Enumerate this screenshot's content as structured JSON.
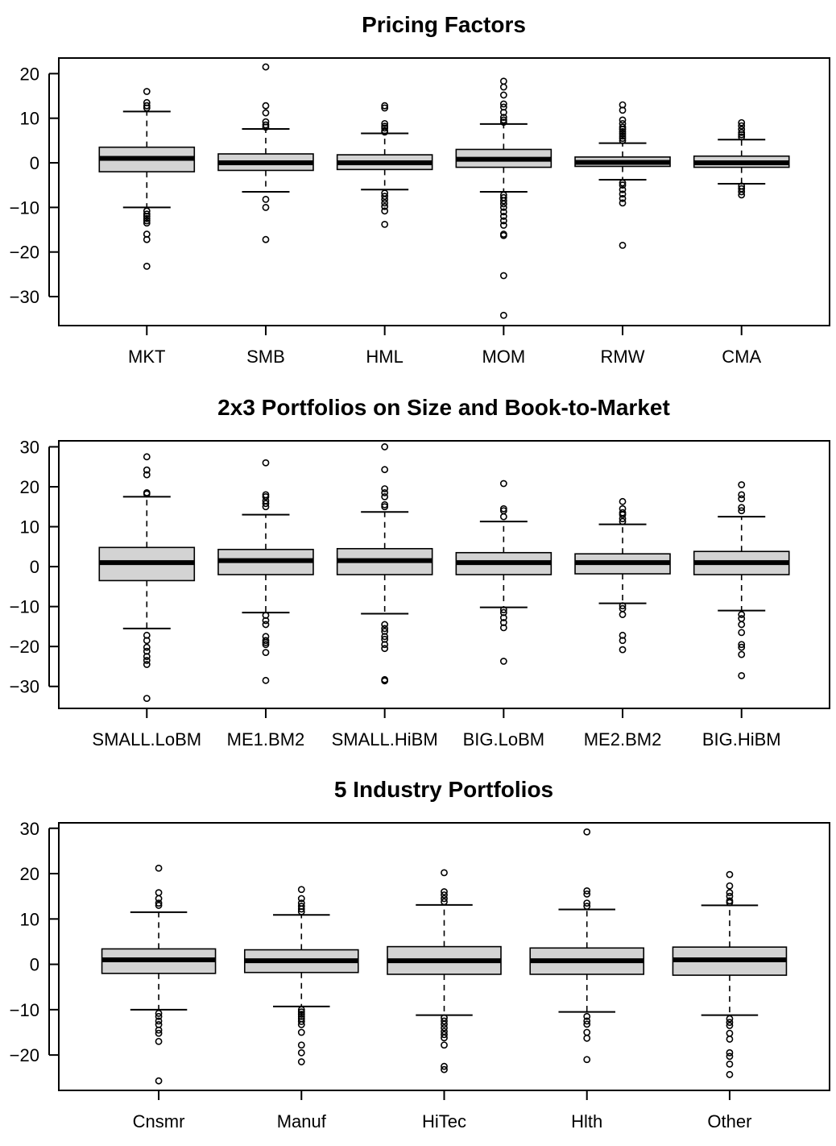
{
  "chart_data": [
    {
      "type": "box",
      "title": "Pricing Factors",
      "xlabel": "",
      "ylabel": "",
      "ylim": [
        -36.5,
        23.5
      ],
      "yticks": [
        -30,
        -20,
        -10,
        0,
        10,
        20
      ],
      "categories": [
        "MKT",
        "SMB",
        "HML",
        "MOM",
        "RMW",
        "CMA"
      ],
      "boxes": [
        {
          "whisker_low": -10,
          "q1": -2,
          "median": 1,
          "q3": 3.5,
          "whisker_high": 11.5,
          "outliers": [
            16,
            13.5,
            12.8,
            12.3,
            -10.8,
            -11.5,
            -12,
            -12.5,
            -13,
            -13.5,
            -16,
            -17.2,
            -23.2
          ]
        },
        {
          "whisker_low": -6.5,
          "q1": -1.7,
          "median": 0,
          "q3": 2,
          "whisker_high": 7.6,
          "outliers": [
            21.5,
            12.8,
            11.2,
            9.2,
            8.5,
            8,
            -8.2,
            -10,
            -17.2
          ]
        },
        {
          "whisker_low": -6,
          "q1": -1.5,
          "median": 0,
          "q3": 1.8,
          "whisker_high": 6.6,
          "outliers": [
            12.8,
            12.3,
            8.8,
            8.2,
            7.8,
            7.2,
            6.9,
            -6.8,
            -7.5,
            -8.2,
            -9,
            -9.8,
            -10.8,
            -13.8
          ]
        },
        {
          "whisker_low": -6.5,
          "q1": -1,
          "median": 0.8,
          "q3": 3,
          "whisker_high": 8.7,
          "outliers": [
            18.3,
            17,
            15.2,
            13.2,
            12.5,
            11.3,
            10.2,
            9.6,
            9.1,
            -7.2,
            -7.8,
            -8.5,
            -9.2,
            -10,
            -11,
            -12,
            -13,
            -14,
            -16,
            -16.3,
            -25.3,
            -34.2
          ]
        },
        {
          "whisker_low": -3.8,
          "q1": -0.8,
          "median": 0.1,
          "q3": 1.3,
          "whisker_high": 4.4,
          "outliers": [
            13,
            11.8,
            9.6,
            8.8,
            8,
            7.5,
            7,
            6.5,
            6,
            5.5,
            5,
            -4.5,
            -5,
            -6,
            -7,
            -8,
            -9,
            -18.5
          ]
        },
        {
          "whisker_low": -4.7,
          "q1": -1,
          "median": 0,
          "q3": 1.5,
          "whisker_high": 5.2,
          "outliers": [
            9,
            8.3,
            7.5,
            6.8,
            6.3,
            5.8,
            -5.2,
            -5.8,
            -6.5,
            -7.2
          ]
        }
      ]
    },
    {
      "type": "box",
      "title": "2x3 Portfolios on Size and Book-to-Market",
      "xlabel": "",
      "ylabel": "",
      "ylim": [
        -35.5,
        31.5
      ],
      "yticks": [
        -30,
        -20,
        -10,
        0,
        10,
        20,
        30
      ],
      "categories": [
        "SMALL.LoBM",
        "ME1.BM2",
        "SMALL.HiBM",
        "BIG.LoBM",
        "ME2.BM2",
        "BIG.HiBM"
      ],
      "boxes": [
        {
          "whisker_low": -15.5,
          "q1": -3.5,
          "median": 1,
          "q3": 4.8,
          "whisker_high": 17.5,
          "outliers": [
            27.5,
            24.2,
            23,
            18.5,
            18.2,
            -17.2,
            -18.5,
            -20.2,
            -21.2,
            -22.5,
            -23.5,
            -24.5,
            -33
          ]
        },
        {
          "whisker_low": -11.5,
          "q1": -2,
          "median": 1.5,
          "q3": 4.3,
          "whisker_high": 13,
          "outliers": [
            26,
            18,
            17.5,
            16.5,
            15.8,
            15,
            -12.2,
            -13.5,
            -14.5,
            -17.5,
            -18.5,
            -19,
            -19.5,
            -21.5,
            -28.5
          ]
        },
        {
          "whisker_low": -11.8,
          "q1": -2,
          "median": 1.5,
          "q3": 4.5,
          "whisker_high": 13.7,
          "outliers": [
            30,
            24.3,
            19.5,
            18.5,
            17.5,
            15.5,
            15,
            -14.5,
            -15.5,
            -16.2,
            -17.5,
            -18.2,
            -19.5,
            -20.5,
            -28.3,
            -28.6
          ]
        },
        {
          "whisker_low": -10.2,
          "q1": -2,
          "median": 1,
          "q3": 3.5,
          "whisker_high": 11.3,
          "outliers": [
            20.8,
            14.5,
            14,
            12.5,
            -10.8,
            -11.5,
            -12.8,
            -14,
            -15.3,
            -23.7
          ]
        },
        {
          "whisker_low": -9.2,
          "q1": -1.8,
          "median": 1,
          "q3": 3.2,
          "whisker_high": 10.6,
          "outliers": [
            16.3,
            14.5,
            13.5,
            13,
            12,
            11.3,
            -9.8,
            -10.5,
            -12,
            -17.2,
            -18.5,
            -20.8
          ]
        },
        {
          "whisker_low": -11,
          "q1": -2,
          "median": 1,
          "q3": 3.8,
          "whisker_high": 12.5,
          "outliers": [
            20.5,
            18,
            17,
            14.8,
            14,
            -12,
            -13,
            -14.5,
            -16.5,
            -19.5,
            -20.2,
            -22,
            -27.3
          ]
        }
      ]
    },
    {
      "type": "box",
      "title": "5 Industry Portfolios",
      "xlabel": "",
      "ylabel": "",
      "ylim": [
        -27.8,
        31.2
      ],
      "yticks": [
        -20,
        -10,
        0,
        10,
        20,
        30
      ],
      "categories": [
        "Cnsmr",
        "Manuf",
        "HiTec",
        "Hlth",
        "Other"
      ],
      "boxes": [
        {
          "whisker_low": -10,
          "q1": -2,
          "median": 1,
          "q3": 3.4,
          "whisker_high": 11.5,
          "outliers": [
            21.2,
            15.8,
            14.5,
            13.5,
            13,
            -10.8,
            -11.5,
            -12.5,
            -13.3,
            -14.5,
            -15.2,
            -17,
            -25.7
          ]
        },
        {
          "whisker_low": -9.3,
          "q1": -1.8,
          "median": 0.8,
          "q3": 3.2,
          "whisker_high": 10.9,
          "outliers": [
            16.5,
            14.5,
            13.5,
            12.8,
            12.2,
            11.6,
            -10,
            -10.5,
            -11,
            -11.5,
            -12,
            -12.6,
            -13.3,
            -15,
            -17.8,
            -19.5,
            -21.5
          ]
        },
        {
          "whisker_low": -11.2,
          "q1": -2.2,
          "median": 0.8,
          "q3": 3.9,
          "whisker_high": 13.1,
          "outliers": [
            20.2,
            16,
            15.3,
            14.5,
            13.8,
            -11.8,
            -12.5,
            -13.2,
            -14,
            -14.8,
            -15.5,
            -16.2,
            -17.8,
            -22.5,
            -23.2
          ]
        },
        {
          "whisker_low": -10.5,
          "q1": -2.2,
          "median": 0.8,
          "q3": 3.6,
          "whisker_high": 12.1,
          "outliers": [
            29.2,
            16.2,
            15.5,
            13.5,
            12.8,
            -11.5,
            -12.5,
            -13.2,
            -15,
            -16.3,
            -21
          ]
        },
        {
          "whisker_low": -11.2,
          "q1": -2.4,
          "median": 1,
          "q3": 3.8,
          "whisker_high": 13,
          "outliers": [
            19.8,
            17.3,
            15.8,
            15,
            14,
            13.6,
            -12,
            -12.8,
            -13.5,
            -15.2,
            -16.5,
            -19.5,
            -20.3,
            -22,
            -24.3
          ]
        }
      ]
    }
  ]
}
